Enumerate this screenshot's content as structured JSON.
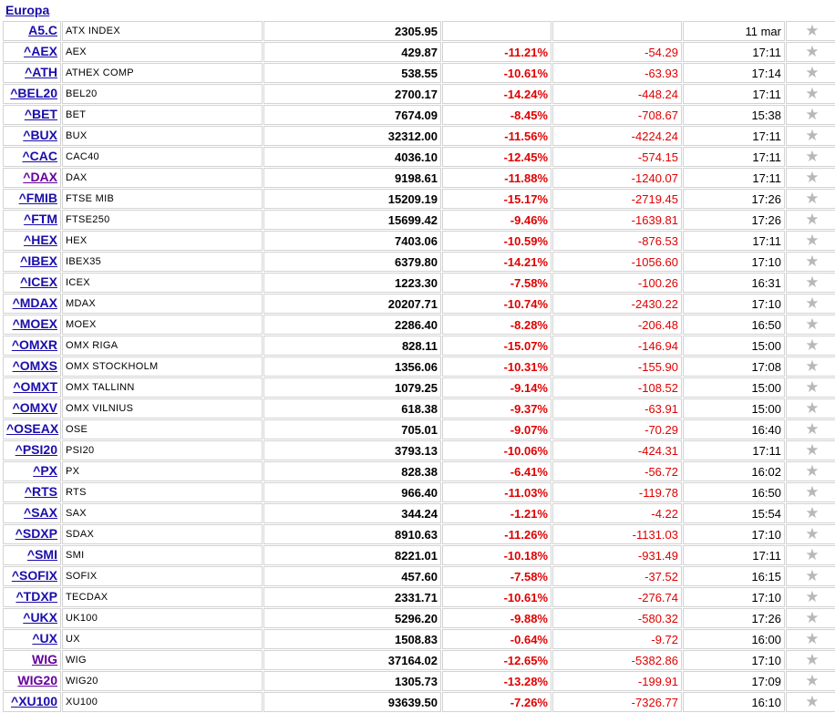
{
  "section": {
    "title": "Europa"
  },
  "star_icon": "★",
  "rows": [
    {
      "symbol": "A5.C",
      "name": "ATX INDEX",
      "value": "2305.95",
      "pct": "",
      "change": "",
      "time": "11 mar"
    },
    {
      "symbol": "^AEX",
      "name": "AEX",
      "value": "429.87",
      "pct": "-11.21%",
      "change": "-54.29",
      "time": "17:11"
    },
    {
      "symbol": "^ATH",
      "name": "ATHEX COMP",
      "value": "538.55",
      "pct": "-10.61%",
      "change": "-63.93",
      "time": "17:14"
    },
    {
      "symbol": "^BEL20",
      "name": "BEL20",
      "value": "2700.17",
      "pct": "-14.24%",
      "change": "-448.24",
      "time": "17:11"
    },
    {
      "symbol": "^BET",
      "name": "BET",
      "value": "7674.09",
      "pct": "-8.45%",
      "change": "-708.67",
      "time": "15:38"
    },
    {
      "symbol": "^BUX",
      "name": "BUX",
      "value": "32312.00",
      "pct": "-11.56%",
      "change": "-4224.24",
      "time": "17:11"
    },
    {
      "symbol": "^CAC",
      "name": "CAC40",
      "value": "4036.10",
      "pct": "-12.45%",
      "change": "-574.15",
      "time": "17:11"
    },
    {
      "symbol": "^DAX",
      "name": "DAX",
      "value": "9198.61",
      "pct": "-11.88%",
      "change": "-1240.07",
      "time": "17:11",
      "visited": true
    },
    {
      "symbol": "^FMIB",
      "name": "FTSE MIB",
      "value": "15209.19",
      "pct": "-15.17%",
      "change": "-2719.45",
      "time": "17:26"
    },
    {
      "symbol": "^FTM",
      "name": "FTSE250",
      "value": "15699.42",
      "pct": "-9.46%",
      "change": "-1639.81",
      "time": "17:26"
    },
    {
      "symbol": "^HEX",
      "name": "HEX",
      "value": "7403.06",
      "pct": "-10.59%",
      "change": "-876.53",
      "time": "17:11"
    },
    {
      "symbol": "^IBEX",
      "name": "IBEX35",
      "value": "6379.80",
      "pct": "-14.21%",
      "change": "-1056.60",
      "time": "17:10"
    },
    {
      "symbol": "^ICEX",
      "name": "ICEX",
      "value": "1223.30",
      "pct": "-7.58%",
      "change": "-100.26",
      "time": "16:31"
    },
    {
      "symbol": "^MDAX",
      "name": "MDAX",
      "value": "20207.71",
      "pct": "-10.74%",
      "change": "-2430.22",
      "time": "17:10"
    },
    {
      "symbol": "^MOEX",
      "name": "MOEX",
      "value": "2286.40",
      "pct": "-8.28%",
      "change": "-206.48",
      "time": "16:50"
    },
    {
      "symbol": "^OMXR",
      "name": "OMX RIGA",
      "value": "828.11",
      "pct": "-15.07%",
      "change": "-146.94",
      "time": "15:00"
    },
    {
      "symbol": "^OMXS",
      "name": "OMX STOCKHOLM",
      "value": "1356.06",
      "pct": "-10.31%",
      "change": "-155.90",
      "time": "17:08"
    },
    {
      "symbol": "^OMXT",
      "name": "OMX TALLINN",
      "value": "1079.25",
      "pct": "-9.14%",
      "change": "-108.52",
      "time": "15:00"
    },
    {
      "symbol": "^OMXV",
      "name": "OMX VILNIUS",
      "value": "618.38",
      "pct": "-9.37%",
      "change": "-63.91",
      "time": "15:00"
    },
    {
      "symbol": "^OSEAX",
      "name": "OSE",
      "value": "705.01",
      "pct": "-9.07%",
      "change": "-70.29",
      "time": "16:40"
    },
    {
      "symbol": "^PSI20",
      "name": "PSI20",
      "value": "3793.13",
      "pct": "-10.06%",
      "change": "-424.31",
      "time": "17:11"
    },
    {
      "symbol": "^PX",
      "name": "PX",
      "value": "828.38",
      "pct": "-6.41%",
      "change": "-56.72",
      "time": "16:02"
    },
    {
      "symbol": "^RTS",
      "name": "RTS",
      "value": "966.40",
      "pct": "-11.03%",
      "change": "-119.78",
      "time": "16:50"
    },
    {
      "symbol": "^SAX",
      "name": "SAX",
      "value": "344.24",
      "pct": "-1.21%",
      "change": "-4.22",
      "time": "15:54"
    },
    {
      "symbol": "^SDXP",
      "name": "SDAX",
      "value": "8910.63",
      "pct": "-11.26%",
      "change": "-1131.03",
      "time": "17:10"
    },
    {
      "symbol": "^SMI",
      "name": "SMI",
      "value": "8221.01",
      "pct": "-10.18%",
      "change": "-931.49",
      "time": "17:11"
    },
    {
      "symbol": "^SOFIX",
      "name": "SOFIX",
      "value": "457.60",
      "pct": "-7.58%",
      "change": "-37.52",
      "time": "16:15"
    },
    {
      "symbol": "^TDXP",
      "name": "TECDAX",
      "value": "2331.71",
      "pct": "-10.61%",
      "change": "-276.74",
      "time": "17:10"
    },
    {
      "symbol": "^UKX",
      "name": "UK100",
      "value": "5296.20",
      "pct": "-9.88%",
      "change": "-580.32",
      "time": "17:26"
    },
    {
      "symbol": "^UX",
      "name": "UX",
      "value": "1508.83",
      "pct": "-0.64%",
      "change": "-9.72",
      "time": "16:00"
    },
    {
      "symbol": "WIG",
      "name": "WIG",
      "value": "37164.02",
      "pct": "-12.65%",
      "change": "-5382.86",
      "time": "17:10",
      "visited": true
    },
    {
      "symbol": "WIG20",
      "name": "WIG20",
      "value": "1305.73",
      "pct": "-13.28%",
      "change": "-199.91",
      "time": "17:09",
      "visited": true
    },
    {
      "symbol": "^XU100",
      "name": "XU100",
      "value": "93639.50",
      "pct": "-7.26%",
      "change": "-7326.77",
      "time": "16:10"
    }
  ]
}
